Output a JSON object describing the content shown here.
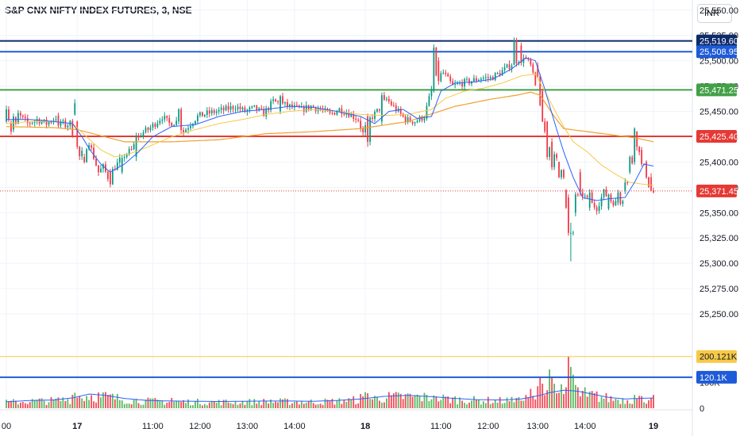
{
  "header": {
    "title": "S&P CNX NIFTY INDEX FUTURES, 3, NSE",
    "currency": "INR"
  },
  "colors": {
    "up": "#26a69a",
    "up_candle": "#089981",
    "down": "#f23645",
    "vol_up": "#4caf50",
    "vol_down": "#f23645",
    "ma_fast": "#2962ff",
    "ma_slow": "#f7c948",
    "ma_long": "#f0a030",
    "navy": "#0d2b6b",
    "blue": "#1e5bd8",
    "green": "#43a047",
    "red": "#e53935",
    "gray_text": "#131722"
  },
  "chart_data": {
    "type": "candlestick",
    "symbol": "S&P CNX NIFTY INDEX FUTURES",
    "interval": "3",
    "exchange": "NSE",
    "ylim": [
      25225,
      25560
    ],
    "y_ticks": [
      "25,550.00",
      "25,525.00",
      "25,500.00",
      "25,475.00",
      "25,450.00",
      "25,425.00",
      "25,400.00",
      "25,375.00",
      "25,350.00",
      "25,325.00",
      "25,300.00",
      "25,275.00",
      "25,250.00"
    ],
    "x_ticks": [
      {
        "label": "00",
        "bar": 0
      },
      {
        "label": "17",
        "bar": 30,
        "bold": true
      },
      {
        "label": "11:00",
        "bar": 62
      },
      {
        "label": "12:00",
        "bar": 82
      },
      {
        "label": "13:00",
        "bar": 102
      },
      {
        "label": "14:00",
        "bar": 122
      },
      {
        "label": "18",
        "bar": 152,
        "bold": true
      },
      {
        "label": "11:00",
        "bar": 184
      },
      {
        "label": "12:00",
        "bar": 204
      },
      {
        "label": "13:00",
        "bar": 225
      },
      {
        "label": "14:00",
        "bar": 245
      },
      {
        "label": "19",
        "bar": 274,
        "bold": true
      }
    ],
    "levels": [
      {
        "value": 25519.6,
        "label": "25,519.60",
        "color": "#0d2b6b",
        "style": "solid"
      },
      {
        "value": 25508.95,
        "label": "25,508.95",
        "color": "#1e5bd8",
        "style": "solid"
      },
      {
        "value": 25471.25,
        "label": "25,471.25",
        "color": "#43a047",
        "style": "solid"
      },
      {
        "value": 25425.4,
        "label": "25,425.40",
        "color": "#e53935",
        "style": "solid"
      },
      {
        "value": 25371.45,
        "label": "25,371.45",
        "color": "#e53935",
        "style": "dotted"
      }
    ],
    "volume": {
      "ylim": [
        0,
        230000
      ],
      "y_ticks": [
        {
          "label": "100K",
          "value": 100000
        },
        {
          "label": "0",
          "value": 0
        }
      ],
      "levels": [
        {
          "value": 200121,
          "label": "200.121K",
          "color": "#f7c948"
        },
        {
          "value": 120100,
          "label": "120.1K",
          "color": "#1e5bd8"
        }
      ],
      "ma_values": [
        [
          0,
          25000
        ],
        [
          10,
          30000
        ],
        [
          20,
          32000
        ],
        [
          28,
          40000
        ],
        [
          35,
          55000
        ],
        [
          42,
          50000
        ],
        [
          50,
          38000
        ],
        [
          60,
          30000
        ],
        [
          70,
          28000
        ],
        [
          80,
          27000
        ],
        [
          90,
          26000
        ],
        [
          100,
          27000
        ],
        [
          110,
          28000
        ],
        [
          120,
          28000
        ],
        [
          130,
          27000
        ],
        [
          140,
          30000
        ],
        [
          150,
          36000
        ],
        [
          160,
          46000
        ],
        [
          170,
          50000
        ],
        [
          180,
          45000
        ],
        [
          190,
          38000
        ],
        [
          200,
          33000
        ],
        [
          210,
          32000
        ],
        [
          218,
          36000
        ],
        [
          225,
          48000
        ],
        [
          230,
          60000
        ],
        [
          236,
          70000
        ],
        [
          242,
          66000
        ],
        [
          248,
          55000
        ],
        [
          255,
          42000
        ],
        [
          262,
          36000
        ],
        [
          268,
          38000
        ],
        [
          274,
          40000
        ]
      ]
    },
    "anchors": [
      [
        0,
        25445
      ],
      [
        3,
        25440
      ],
      [
        6,
        25447
      ],
      [
        10,
        25438
      ],
      [
        14,
        25442
      ],
      [
        18,
        25438
      ],
      [
        22,
        25444
      ],
      [
        26,
        25436
      ],
      [
        28,
        25438
      ],
      [
        30,
        25418
      ],
      [
        32,
        25405
      ],
      [
        34,
        25412
      ],
      [
        36,
        25420
      ],
      [
        38,
        25405
      ],
      [
        40,
        25390
      ],
      [
        42,
        25395
      ],
      [
        44,
        25385
      ],
      [
        47,
        25395
      ],
      [
        50,
        25405
      ],
      [
        54,
        25412
      ],
      [
        58,
        25428
      ],
      [
        61,
        25432
      ],
      [
        64,
        25438
      ],
      [
        67,
        25445
      ],
      [
        70,
        25438
      ],
      [
        73,
        25440
      ],
      [
        76,
        25430
      ],
      [
        79,
        25438
      ],
      [
        82,
        25445
      ],
      [
        86,
        25448
      ],
      [
        90,
        25450
      ],
      [
        94,
        25452
      ],
      [
        98,
        25455
      ],
      [
        102,
        25450
      ],
      [
        106,
        25453
      ],
      [
        110,
        25448
      ],
      [
        114,
        25460
      ],
      [
        118,
        25457
      ],
      [
        122,
        25454
      ],
      [
        126,
        25452
      ],
      [
        130,
        25455
      ],
      [
        134,
        25452
      ],
      [
        138,
        25447
      ],
      [
        142,
        25452
      ],
      [
        146,
        25448
      ],
      [
        150,
        25442
      ],
      [
        152,
        25428
      ],
      [
        154,
        25440
      ],
      [
        158,
        25450
      ],
      [
        162,
        25462
      ],
      [
        166,
        25452
      ],
      [
        170,
        25442
      ],
      [
        174,
        25440
      ],
      [
        178,
        25445
      ],
      [
        182,
        25480
      ],
      [
        186,
        25488
      ],
      [
        190,
        25475
      ],
      [
        194,
        25478
      ],
      [
        198,
        25480
      ],
      [
        202,
        25483
      ],
      [
        206,
        25483
      ],
      [
        210,
        25488
      ],
      [
        214,
        25495
      ],
      [
        217,
        25500
      ],
      [
        220,
        25505
      ],
      [
        223,
        25495
      ],
      [
        226,
        25465
      ],
      [
        228,
        25440
      ],
      [
        230,
        25420
      ],
      [
        233,
        25405
      ],
      [
        236,
        25395
      ],
      [
        238,
        25380
      ],
      [
        240,
        25345
      ],
      [
        241,
        25330
      ],
      [
        243,
        25365
      ],
      [
        245,
        25368
      ],
      [
        248,
        25360
      ],
      [
        251,
        25355
      ],
      [
        254,
        25370
      ],
      [
        257,
        25362
      ],
      [
        260,
        25358
      ],
      [
        263,
        25368
      ],
      [
        266,
        25400
      ],
      [
        268,
        25420
      ],
      [
        270,
        25405
      ],
      [
        272,
        25385
      ],
      [
        274,
        25370
      ]
    ],
    "ma_fast": [
      [
        0,
        25442
      ],
      [
        10,
        25442
      ],
      [
        20,
        25440
      ],
      [
        28,
        25438
      ],
      [
        32,
        25425
      ],
      [
        36,
        25410
      ],
      [
        40,
        25398
      ],
      [
        44,
        25390
      ],
      [
        50,
        25398
      ],
      [
        56,
        25410
      ],
      [
        62,
        25425
      ],
      [
        70,
        25435
      ],
      [
        80,
        25437
      ],
      [
        90,
        25445
      ],
      [
        100,
        25450
      ],
      [
        110,
        25452
      ],
      [
        120,
        25455
      ],
      [
        130,
        25454
      ],
      [
        140,
        25450
      ],
      [
        150,
        25445
      ],
      [
        156,
        25438
      ],
      [
        162,
        25450
      ],
      [
        168,
        25452
      ],
      [
        174,
        25443
      ],
      [
        180,
        25445
      ],
      [
        184,
        25470
      ],
      [
        190,
        25478
      ],
      [
        198,
        25479
      ],
      [
        206,
        25482
      ],
      [
        214,
        25492
      ],
      [
        220,
        25503
      ],
      [
        224,
        25500
      ],
      [
        228,
        25472
      ],
      [
        232,
        25440
      ],
      [
        236,
        25410
      ],
      [
        240,
        25385
      ],
      [
        244,
        25365
      ],
      [
        250,
        25362
      ],
      [
        256,
        25364
      ],
      [
        262,
        25365
      ],
      [
        266,
        25380
      ],
      [
        270,
        25398
      ],
      [
        274,
        25396
      ]
    ],
    "ma_slow": [
      [
        0,
        25438
      ],
      [
        10,
        25440
      ],
      [
        20,
        25440
      ],
      [
        28,
        25438
      ],
      [
        34,
        25425
      ],
      [
        40,
        25412
      ],
      [
        46,
        25405
      ],
      [
        52,
        25408
      ],
      [
        60,
        25415
      ],
      [
        70,
        25425
      ],
      [
        80,
        25432
      ],
      [
        90,
        25438
      ],
      [
        100,
        25442
      ],
      [
        110,
        25447
      ],
      [
        120,
        25450
      ],
      [
        130,
        25452
      ],
      [
        140,
        25450
      ],
      [
        150,
        25447
      ],
      [
        160,
        25446
      ],
      [
        170,
        25447
      ],
      [
        180,
        25452
      ],
      [
        186,
        25463
      ],
      [
        194,
        25470
      ],
      [
        202,
        25473
      ],
      [
        210,
        25478
      ],
      [
        218,
        25485
      ],
      [
        224,
        25487
      ],
      [
        228,
        25470
      ],
      [
        232,
        25452
      ],
      [
        236,
        25435
      ],
      [
        240,
        25420
      ],
      [
        246,
        25410
      ],
      [
        252,
        25397
      ],
      [
        258,
        25388
      ],
      [
        264,
        25380
      ],
      [
        270,
        25378
      ],
      [
        274,
        25377
      ]
    ],
    "ma_long": [
      [
        0,
        25435
      ],
      [
        20,
        25434
      ],
      [
        30,
        25432
      ],
      [
        50,
        25420
      ],
      [
        70,
        25420
      ],
      [
        90,
        25422
      ],
      [
        110,
        25428
      ],
      [
        130,
        25430
      ],
      [
        150,
        25433
      ],
      [
        170,
        25440
      ],
      [
        190,
        25455
      ],
      [
        205,
        25462
      ],
      [
        216,
        25466
      ],
      [
        222,
        25469
      ],
      [
        226,
        25466
      ],
      [
        232,
        25445
      ],
      [
        236,
        25433
      ],
      [
        246,
        25430
      ],
      [
        256,
        25427
      ],
      [
        266,
        25424
      ],
      [
        274,
        25420
      ]
    ],
    "candles": [
      [
        0,
        25440,
        25452
      ],
      [
        1,
        25452,
        25442
      ],
      [
        2,
        25438,
        25430
      ],
      [
        3,
        25432,
        25445
      ],
      [
        4,
        25444,
        25438
      ],
      [
        22,
        25446,
        25436
      ],
      [
        29,
        25447,
        25458
      ],
      [
        30,
        25440,
        25415
      ],
      [
        33,
        25405,
        25400
      ],
      [
        44,
        25390,
        25378
      ],
      [
        49,
        25390,
        25404
      ],
      [
        55,
        25405,
        25425
      ],
      [
        73,
        25440,
        25452
      ],
      [
        116,
        25450,
        25465
      ],
      [
        153,
        25445,
        25420
      ],
      [
        159,
        25440,
        25466
      ],
      [
        181,
        25470,
        25513
      ],
      [
        183,
        25500,
        25480
      ],
      [
        215,
        25496,
        25520
      ],
      [
        218,
        25515,
        25498
      ],
      [
        225,
        25495,
        25485
      ],
      [
        227,
        25470,
        25440
      ],
      [
        229,
        25440,
        25405
      ],
      [
        231,
        25420,
        25395
      ],
      [
        234,
        25400,
        25385
      ],
      [
        237,
        25372,
        25355
      ],
      [
        238,
        25365,
        25330
      ],
      [
        239,
        25330,
        25330
      ],
      [
        241,
        25350,
        25368
      ],
      [
        243,
        25390,
        25370
      ],
      [
        247,
        25355,
        25370
      ],
      [
        255,
        25354,
        25368
      ],
      [
        259,
        25360,
        25370
      ],
      [
        262,
        25372,
        25380
      ],
      [
        264,
        25390,
        25405
      ],
      [
        266,
        25400,
        25433
      ],
      [
        267,
        25430,
        25415
      ],
      [
        269,
        25412,
        25398
      ],
      [
        271,
        25400,
        25385
      ],
      [
        273,
        25385,
        25372
      ]
    ]
  }
}
